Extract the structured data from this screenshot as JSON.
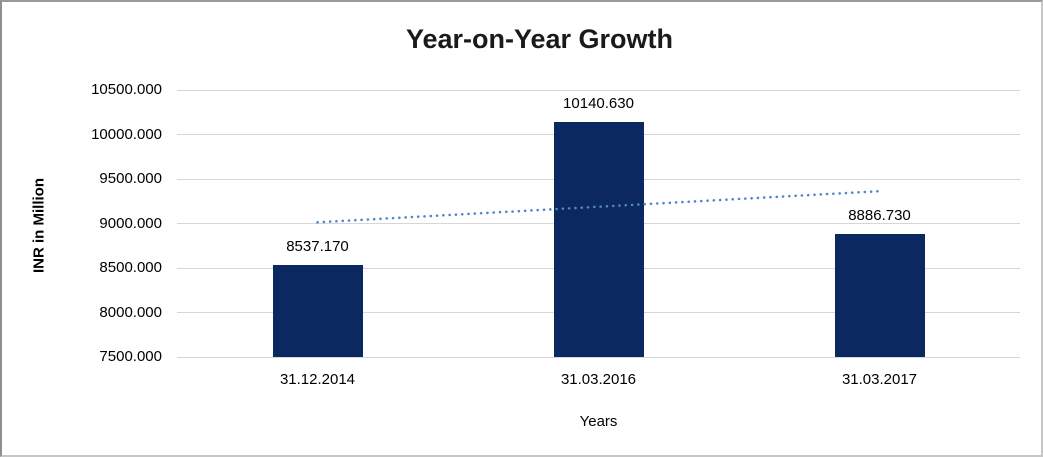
{
  "window": {
    "background_color": "#ffffff",
    "frame_color": "#c6c6c6"
  },
  "chart_data": {
    "type": "bar",
    "title": "Year-on-Year Growth",
    "xlabel": "Years",
    "ylabel": "INR in Million",
    "categories": [
      "31.12.2014",
      "31.03.2016",
      "31.03.2017"
    ],
    "values": [
      8537.17,
      10140.63,
      8886.73
    ],
    "value_labels": [
      "8537.170",
      "10140.630",
      "8886.730"
    ],
    "y_ticks": [
      "10500.000",
      "10000.000",
      "9500.000",
      "9000.000",
      "8500.000",
      "8000.000",
      "7500.000"
    ],
    "ylim": [
      7500,
      10500
    ],
    "grid": true,
    "legend_position": "none",
    "bar_color": "#0C2861",
    "gridline_color": "#D6D6D6",
    "trendline": {
      "type": "linear",
      "style": "dotted",
      "color": "#4E86C8",
      "start_value": 9013.4,
      "end_value": 9363.0
    }
  }
}
